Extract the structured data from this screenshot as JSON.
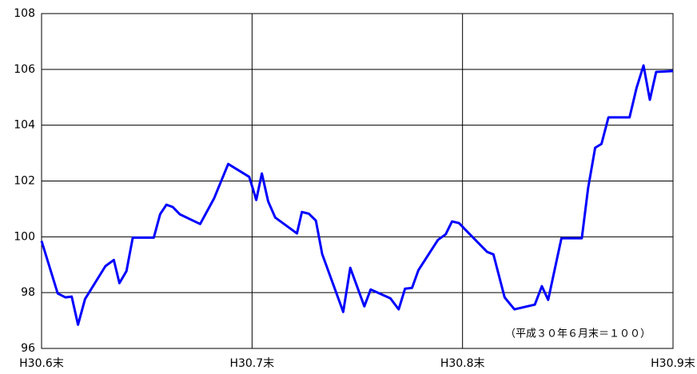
{
  "chart_data": {
    "type": "line",
    "annotation": "（平成３０年６月末＝１００）",
    "x": [
      0,
      2.3,
      3.4,
      4.3,
      5.2,
      6.2,
      9.1,
      10.3,
      11.1,
      12.1,
      13.0,
      16.0,
      16.9,
      17.8,
      18.7,
      19.7,
      22.6,
      24.6,
      26.6,
      29.6,
      30.6,
      31.4,
      32.3,
      33.3,
      36.4,
      37.1,
      38.1,
      39.1,
      40.0,
      43.0,
      44.0,
      46.0,
      46.9,
      49.7,
      50.9,
      51.8,
      52.8,
      53.7,
      56.5,
      57.6,
      58.5,
      59.5,
      60.5,
      63.5,
      64.4,
      66.0,
      67.4,
      70.3,
      71.3,
      72.2,
      74.1,
      77.0,
      77.9,
      78.9,
      79.8,
      80.8,
      83.8,
      84.8,
      85.8,
      86.7,
      87.6,
      90
    ],
    "series": [
      {
        "color": "#0000ff",
        "values": [
          99.85,
          97.97,
          97.83,
          97.86,
          96.85,
          97.77,
          98.95,
          99.17,
          98.34,
          98.77,
          99.97,
          99.97,
          100.81,
          101.15,
          101.07,
          100.81,
          100.46,
          101.38,
          102.61,
          102.15,
          101.32,
          102.27,
          101.27,
          100.69,
          100.12,
          100.89,
          100.83,
          100.58,
          99.38,
          97.31,
          98.89,
          97.51,
          98.11,
          97.8,
          97.4,
          98.14,
          98.17,
          98.8,
          99.89,
          100.09,
          100.55,
          100.49,
          100.23,
          99.46,
          99.37,
          97.83,
          97.4,
          97.57,
          98.23,
          97.74,
          99.95,
          99.95,
          101.75,
          103.19,
          103.33,
          104.28,
          104.28,
          105.34,
          106.14,
          104.91,
          105.91,
          105.94
        ]
      }
    ],
    "xlim": [
      0,
      90
    ],
    "xticks": [
      {
        "value": 0,
        "label": "H30.6末"
      },
      {
        "value": 30,
        "label": "H30.7末"
      },
      {
        "value": 60,
        "label": "H30.8末"
      },
      {
        "value": 90,
        "label": "H30.9末"
      }
    ],
    "ylim": [
      96,
      108
    ],
    "yticks": [
      96,
      98,
      100,
      102,
      104,
      106,
      108
    ],
    "grid": true
  }
}
